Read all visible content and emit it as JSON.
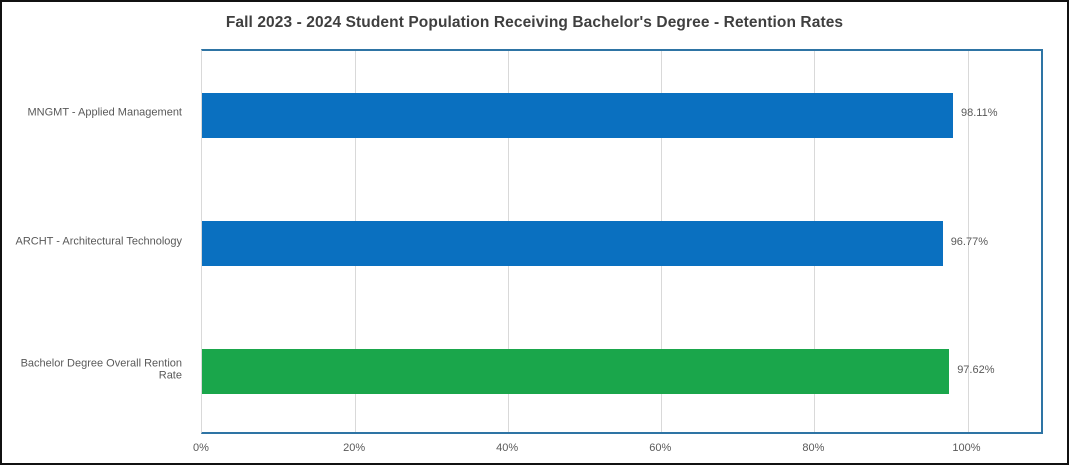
{
  "title": "Fall 2023 - 2024 Student Population Receiving Bachelor's Degree - Retention Rates",
  "chart_data": {
    "type": "bar",
    "orientation": "horizontal",
    "title": "Fall 2023 - 2024 Student Population Receiving Bachelor's Degree - Retention Rates",
    "categories": [
      "MNGMT - Applied Management",
      "ARCHT - Architectural Technology",
      "Bachelor Degree Overall Rention Rate"
    ],
    "values": [
      98.11,
      96.77,
      97.62
    ],
    "value_labels": [
      "98.11%",
      "96.77%",
      "97.62%"
    ],
    "bar_colors": [
      "#0a70c0",
      "#0a70c0",
      "#1aa64b"
    ],
    "xlabel": "",
    "ylabel": "",
    "xlim": [
      0,
      110
    ],
    "x_ticks": [
      {
        "value": 0,
        "label": "0%"
      },
      {
        "value": 20,
        "label": "20%"
      },
      {
        "value": 40,
        "label": "40%"
      },
      {
        "value": 60,
        "label": "60%"
      },
      {
        "value": 80,
        "label": "80%"
      },
      {
        "value": 100,
        "label": "100%"
      }
    ],
    "grid": true,
    "legend": false,
    "colors": {
      "bar_blue": "#0a70c0",
      "bar_green": "#1aa64b",
      "plot_border": "#2e74a4",
      "gridline": "#d9d9d9",
      "title_text": "#3f3f3f",
      "axis_text": "#595959",
      "frame_border": "#111111",
      "background": "#ffffff"
    }
  }
}
